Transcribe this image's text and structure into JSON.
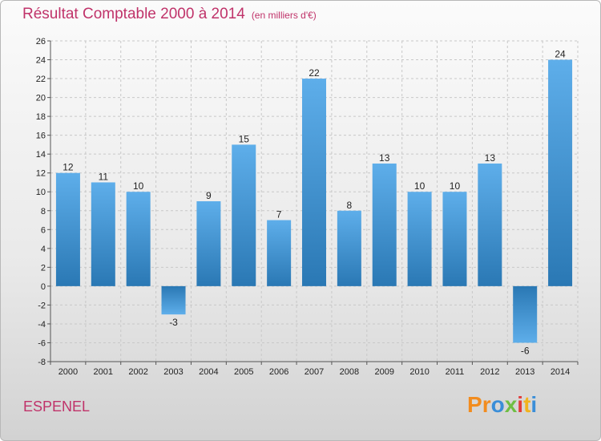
{
  "title": "Résultat Comptable 2000 à 2014",
  "subtitle": "(en milliers d'€)",
  "commune": "ESPENEL",
  "logo": {
    "text": "Proxiti",
    "letters": [
      "P",
      "r",
      "o",
      "x",
      "i",
      "t",
      "i"
    ]
  },
  "colors": {
    "accent": "#c0336a",
    "bar_light": "#5eaeea",
    "bar_dark": "#2a78b4",
    "logo": [
      "#f28c1e",
      "#f28c1e",
      "#3a8ed8",
      "#6fbe44",
      "#e23b3b",
      "#f2b21e",
      "#3a8ed8"
    ]
  },
  "chart_data": {
    "type": "bar",
    "title": "Résultat Comptable 2000 à 2014",
    "xlabel": "",
    "ylabel": "",
    "ylim": [
      -8,
      26
    ],
    "yticks": [
      -8,
      -6,
      -4,
      -2,
      0,
      2,
      4,
      6,
      8,
      10,
      12,
      14,
      16,
      18,
      20,
      22,
      24,
      26
    ],
    "grid": true,
    "categories": [
      "2000",
      "2001",
      "2002",
      "2003",
      "2004",
      "2005",
      "2006",
      "2007",
      "2008",
      "2009",
      "2010",
      "2011",
      "2012",
      "2013",
      "2014"
    ],
    "values": [
      12,
      11,
      10,
      -3,
      9,
      15,
      7,
      22,
      8,
      13,
      10,
      10,
      13,
      -6,
      24
    ]
  }
}
